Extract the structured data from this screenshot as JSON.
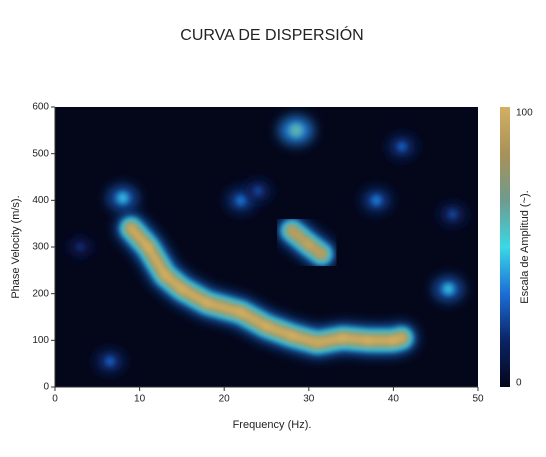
{
  "chart_data": {
    "type": "heatmap",
    "title": "CURVA DE DISPERSIÓN",
    "xlabel": "Frequency (Hz).",
    "ylabel": "Phase Velocity (m/s).",
    "xlim": [
      0,
      50
    ],
    "ylim": [
      0,
      600
    ],
    "xticks": [
      0,
      10,
      20,
      30,
      40,
      50
    ],
    "yticks": [
      0,
      100,
      200,
      300,
      400,
      500,
      600
    ],
    "colormap": [
      "#04061a",
      "#0a2466",
      "#1c6ed6",
      "#3ad8e6",
      "#6f9a8e",
      "#a89258",
      "#d2b062"
    ],
    "colorbar": {
      "label": "Escala de Amplitud (~).",
      "lim": [
        0,
        100
      ],
      "ticks": [
        0,
        100
      ]
    },
    "curves": [
      {
        "x": [
          9,
          11,
          13,
          15,
          18,
          22,
          25,
          28,
          31,
          34,
          37,
          40,
          41
        ],
        "y": [
          340,
          300,
          240,
          210,
          180,
          160,
          130,
          110,
          95,
          105,
          100,
          100,
          105
        ],
        "values": [
          95,
          100,
          100,
          100,
          100,
          100,
          100,
          100,
          95,
          100,
          100,
          100,
          95
        ]
      },
      {
        "x": [
          28,
          30,
          31.5
        ],
        "y": [
          335,
          305,
          285
        ],
        "values": [
          90,
          95,
          90
        ]
      }
    ],
    "spots": {
      "x": [
        28.5,
        8,
        22,
        38,
        46.5,
        41,
        47,
        6.5,
        3,
        24
      ],
      "y": [
        550,
        405,
        400,
        400,
        210,
        515,
        370,
        55,
        300,
        420
      ],
      "values": [
        60,
        45,
        35,
        35,
        45,
        30,
        25,
        30,
        18,
        25
      ]
    }
  }
}
